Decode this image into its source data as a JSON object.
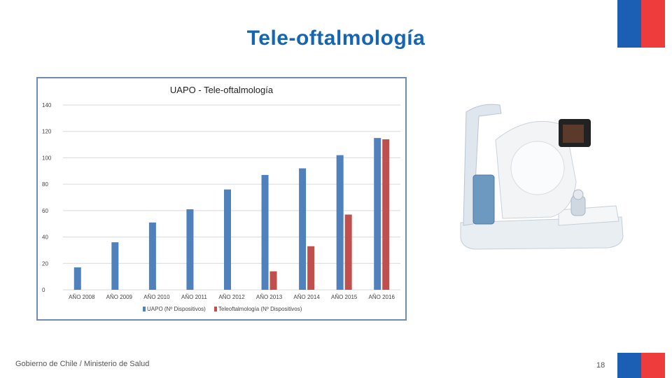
{
  "slide": {
    "title": "Tele-oftalmología",
    "footer": "Gobierno de Chile / Ministerio de Salud",
    "page_number": "18"
  },
  "colors": {
    "brand_blue": "#1565b5",
    "flag_blue": "#1a5fb4",
    "flag_red": "#ee3c3c",
    "series_uapo": "#4f81bd",
    "series_tele": "#c0504d"
  },
  "image": {
    "icon": "retinal-camera-device"
  },
  "chart_data": {
    "type": "bar",
    "title": "UAPO - Tele-oftalmología",
    "categories": [
      "AÑO 2008",
      "AÑO 2009",
      "AÑO 2010",
      "AÑO 2011",
      "AÑO 2012",
      "AÑO 2013",
      "AÑO 2014",
      "AÑO 2015",
      "AÑO 2016"
    ],
    "series": [
      {
        "name": "UAPO (Nº Dispositivos)",
        "values": [
          17,
          36,
          51,
          61,
          76,
          87,
          92,
          102,
          115
        ]
      },
      {
        "name": "Teleoftalmología (Nº Dispositivos)",
        "values": [
          0,
          0,
          0,
          0,
          0,
          14,
          33,
          57,
          114
        ]
      }
    ],
    "ylim": [
      0,
      140
    ],
    "yticks": [
      0,
      20,
      40,
      60,
      80,
      100,
      120,
      140
    ],
    "grid": true,
    "legend": "bottom"
  }
}
